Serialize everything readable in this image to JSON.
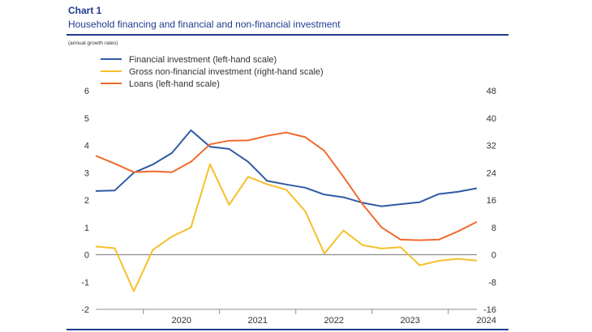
{
  "header": {
    "chart_number": "Chart 1",
    "title": "Household financing and financial and non-financial investment",
    "subtitle": "(annual growth rates)"
  },
  "chart_data": {
    "type": "line",
    "x_ticks": [
      "2020",
      "2021",
      "2022",
      "2023",
      "2024"
    ],
    "y_left": {
      "min": -2,
      "max": 6,
      "ticks": [
        6,
        5,
        4,
        3,
        2,
        1,
        0,
        -1,
        -2
      ]
    },
    "y_right": {
      "min": -16,
      "max": 48,
      "ticks": [
        48,
        40,
        32,
        24,
        16,
        8,
        0,
        -8,
        -16
      ]
    },
    "legend_position": "top-left",
    "zero_line": true,
    "series": [
      {
        "name": "Financial investment (left-hand scale)",
        "axis": "left",
        "color": "#2e5aa5",
        "values": [
          2.33,
          2.35,
          3.0,
          3.3,
          3.72,
          4.55,
          3.95,
          3.87,
          3.4,
          2.7,
          2.57,
          2.45,
          2.2,
          2.1,
          1.9,
          1.77,
          1.85,
          1.92,
          2.22,
          2.3,
          2.43
        ]
      },
      {
        "name": "Gross non-financial investment (right-hand scale)",
        "axis": "right",
        "color": "#f5c02a",
        "values": [
          2.4,
          1.9,
          -10.7,
          1.4,
          5.3,
          8.0,
          26.5,
          14.6,
          22.8,
          20.6,
          19.0,
          12.7,
          0.3,
          7.1,
          2.8,
          1.8,
          2.2,
          -3.1,
          -1.8,
          -1.2,
          -1.7
        ]
      },
      {
        "name": "Loans (left-hand scale)",
        "axis": "left",
        "color": "#f06a2e",
        "values": [
          3.62,
          3.33,
          3.02,
          3.05,
          3.02,
          3.4,
          4.04,
          4.17,
          4.18,
          4.35,
          4.47,
          4.3,
          3.8,
          2.85,
          1.85,
          1.0,
          0.55,
          0.53,
          0.55,
          0.85,
          1.2
        ]
      }
    ]
  }
}
